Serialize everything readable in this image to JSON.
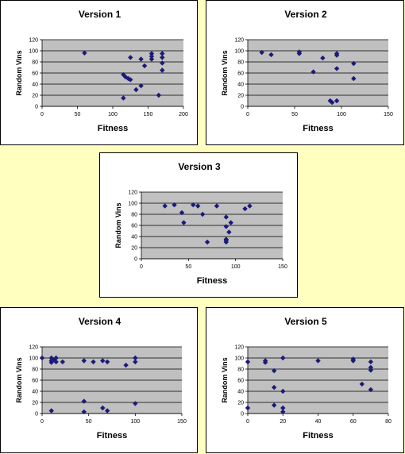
{
  "colors": {
    "background": "#ffffc0",
    "plot_area": "#c0c0c0",
    "marker": "#1a1a7a"
  },
  "chart_data": [
    {
      "type": "scatter",
      "title": "Version 1",
      "xlabel": "Fitness",
      "ylabel": "Random Vins",
      "xlim": [
        0,
        200
      ],
      "ylim": [
        0,
        120
      ],
      "xticks": [
        0,
        50,
        100,
        150,
        200
      ],
      "yticks": [
        0,
        20,
        40,
        60,
        80,
        100,
        120
      ],
      "grid": true,
      "points": [
        [
          60,
          96
        ],
        [
          115,
          15
        ],
        [
          115,
          57
        ],
        [
          118,
          53
        ],
        [
          122,
          50
        ],
        [
          125,
          48
        ],
        [
          125,
          88
        ],
        [
          133,
          30
        ],
        [
          140,
          85
        ],
        [
          140,
          37
        ],
        [
          145,
          73
        ],
        [
          155,
          95
        ],
        [
          155,
          85
        ],
        [
          155,
          90
        ],
        [
          165,
          20
        ],
        [
          170,
          95
        ],
        [
          170,
          88
        ],
        [
          170,
          78
        ],
        [
          170,
          65
        ]
      ]
    },
    {
      "type": "scatter",
      "title": "Version 2",
      "xlabel": "Fitness",
      "ylabel": "Random Vins",
      "xlim": [
        0,
        150
      ],
      "ylim": [
        0,
        120
      ],
      "xticks": [
        0,
        50,
        100,
        150
      ],
      "yticks": [
        0,
        20,
        40,
        60,
        80,
        100,
        120
      ],
      "grid": true,
      "points": [
        [
          15,
          97
        ],
        [
          25,
          93
        ],
        [
          55,
          98
        ],
        [
          55,
          95
        ],
        [
          70,
          62
        ],
        [
          80,
          87
        ],
        [
          88,
          10
        ],
        [
          90,
          7
        ],
        [
          95,
          95
        ],
        [
          95,
          92
        ],
        [
          95,
          68
        ],
        [
          95,
          10
        ],
        [
          113,
          77
        ],
        [
          113,
          50
        ]
      ]
    },
    {
      "type": "scatter",
      "title": "Version 3",
      "xlabel": "Fitness",
      "ylabel": "Random Vins",
      "xlim": [
        0,
        150
      ],
      "ylim": [
        0,
        120
      ],
      "xticks": [
        0,
        50,
        100,
        150
      ],
      "yticks": [
        0,
        20,
        40,
        60,
        80,
        100,
        120
      ],
      "grid": true,
      "points": [
        [
          25,
          95
        ],
        [
          35,
          97
        ],
        [
          43,
          83
        ],
        [
          45,
          65
        ],
        [
          55,
          97
        ],
        [
          60,
          95
        ],
        [
          65,
          80
        ],
        [
          70,
          30
        ],
        [
          80,
          95
        ],
        [
          90,
          75
        ],
        [
          90,
          58
        ],
        [
          90,
          35
        ],
        [
          90,
          33
        ],
        [
          90,
          30
        ],
        [
          93,
          48
        ],
        [
          95,
          65
        ],
        [
          110,
          90
        ],
        [
          115,
          95
        ]
      ]
    },
    {
      "type": "scatter",
      "title": "Version 4",
      "xlabel": "Fitness",
      "ylabel": "Random Vins",
      "xlim": [
        0,
        150
      ],
      "ylim": [
        0,
        120
      ],
      "xticks": [
        0,
        50,
        100,
        150
      ],
      "yticks": [
        0,
        20,
        40,
        60,
        80,
        100,
        120
      ],
      "grid": true,
      "points": [
        [
          0,
          100
        ],
        [
          10,
          100
        ],
        [
          10,
          95
        ],
        [
          10,
          92
        ],
        [
          12,
          97
        ],
        [
          15,
          100
        ],
        [
          15,
          93
        ],
        [
          22,
          93
        ],
        [
          10,
          5
        ],
        [
          45,
          95
        ],
        [
          45,
          22
        ],
        [
          45,
          3
        ],
        [
          55,
          93
        ],
        [
          65,
          95
        ],
        [
          65,
          10
        ],
        [
          70,
          93
        ],
        [
          70,
          5
        ],
        [
          90,
          87
        ],
        [
          100,
          100
        ],
        [
          100,
          93
        ],
        [
          100,
          18
        ]
      ]
    },
    {
      "type": "scatter",
      "title": "Version 5",
      "xlabel": "Fitness",
      "ylabel": "Random Vins",
      "xlim": [
        0,
        80
      ],
      "ylim": [
        0,
        120
      ],
      "xticks": [
        0,
        20,
        40,
        60,
        80
      ],
      "yticks": [
        0,
        20,
        40,
        60,
        80,
        100,
        120
      ],
      "grid": true,
      "points": [
        [
          0,
          93
        ],
        [
          0,
          10
        ],
        [
          10,
          95
        ],
        [
          10,
          92
        ],
        [
          15,
          77
        ],
        [
          15,
          47
        ],
        [
          15,
          15
        ],
        [
          20,
          100
        ],
        [
          20,
          40
        ],
        [
          20,
          10
        ],
        [
          20,
          3
        ],
        [
          40,
          95
        ],
        [
          60,
          98
        ],
        [
          60,
          95
        ],
        [
          65,
          53
        ],
        [
          70,
          93
        ],
        [
          70,
          83
        ],
        [
          70,
          78
        ],
        [
          70,
          43
        ]
      ]
    }
  ]
}
